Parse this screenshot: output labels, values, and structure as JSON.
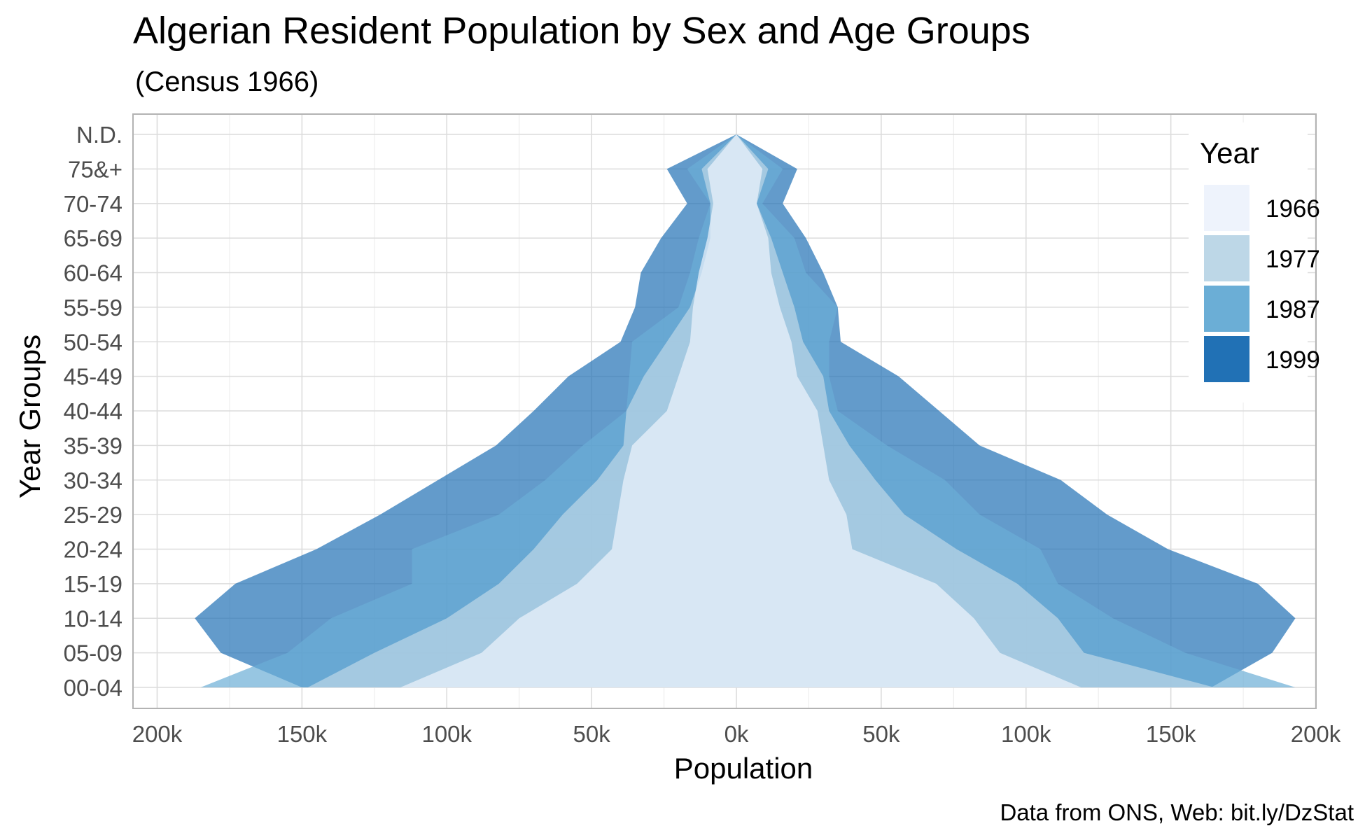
{
  "chart_data": {
    "type": "area",
    "title": "Algerian Resident Population by Sex and Age Groups",
    "subtitle": "(Census 1966)",
    "xlabel": "Population",
    "ylabel": "Year Groups",
    "caption": "Data from ONS, Web: bit.ly/DzStat",
    "xlim": [
      -200000,
      200000
    ],
    "x_ticks": [
      -200000,
      -150000,
      -100000,
      -50000,
      0,
      50000,
      100000,
      150000,
      200000
    ],
    "x_tick_labels": [
      "200k",
      "150k",
      "100k",
      "50k",
      "0k",
      "50k",
      "100k",
      "150k",
      "200k"
    ],
    "categories": [
      "00-04",
      "05-09",
      "10-14",
      "15-19",
      "20-24",
      "25-29",
      "30-34",
      "35-39",
      "40-44",
      "45-49",
      "50-54",
      "55-59",
      "60-64",
      "65-69",
      "70-74",
      "75&+",
      "N.D."
    ],
    "grid": true,
    "legend": {
      "title": "Year",
      "position": "top-right"
    },
    "series": [
      {
        "name": "1999",
        "color": "#2171b5",
        "left": [
          150000,
          178000,
          187000,
          173000,
          145000,
          123000,
          103000,
          83000,
          70000,
          58000,
          40000,
          35000,
          33000,
          26000,
          17000,
          24000,
          0
        ],
        "right": [
          164000,
          185000,
          193000,
          180000,
          149000,
          128000,
          112000,
          84000,
          70000,
          56000,
          36000,
          35000,
          30000,
          24000,
          16000,
          21000,
          0
        ]
      },
      {
        "name": "1987",
        "color": "#6baed6",
        "left": [
          185000,
          155000,
          140000,
          112000,
          112000,
          82000,
          66000,
          53000,
          38000,
          37000,
          36000,
          20000,
          16000,
          13000,
          9000,
          17000,
          0
        ],
        "right": [
          193000,
          155000,
          130000,
          111000,
          105000,
          84000,
          72000,
          52000,
          35000,
          32000,
          32000,
          35000,
          24000,
          20000,
          9000,
          16000,
          0
        ]
      },
      {
        "name": "1977",
        "color": "#bdd7e7",
        "left": [
          148000,
          125000,
          100000,
          82000,
          70000,
          60000,
          48000,
          39000,
          38000,
          32000,
          24000,
          16000,
          12000,
          9000,
          9000,
          12000,
          0
        ],
        "right": [
          165000,
          120000,
          111000,
          97000,
          76000,
          58000,
          48000,
          39000,
          32000,
          30000,
          23000,
          20000,
          16000,
          12000,
          7000,
          11000,
          0
        ]
      },
      {
        "name": "1966",
        "color": "#eef3fc",
        "left": [
          116000,
          88000,
          75000,
          55000,
          43000,
          41000,
          39000,
          36000,
          24000,
          20000,
          16000,
          15000,
          13000,
          10000,
          8000,
          10000,
          0
        ],
        "right": [
          119000,
          91000,
          82000,
          69000,
          40000,
          38000,
          32000,
          30000,
          28000,
          21000,
          19000,
          15000,
          12000,
          11000,
          7000,
          9000,
          0
        ]
      }
    ]
  }
}
